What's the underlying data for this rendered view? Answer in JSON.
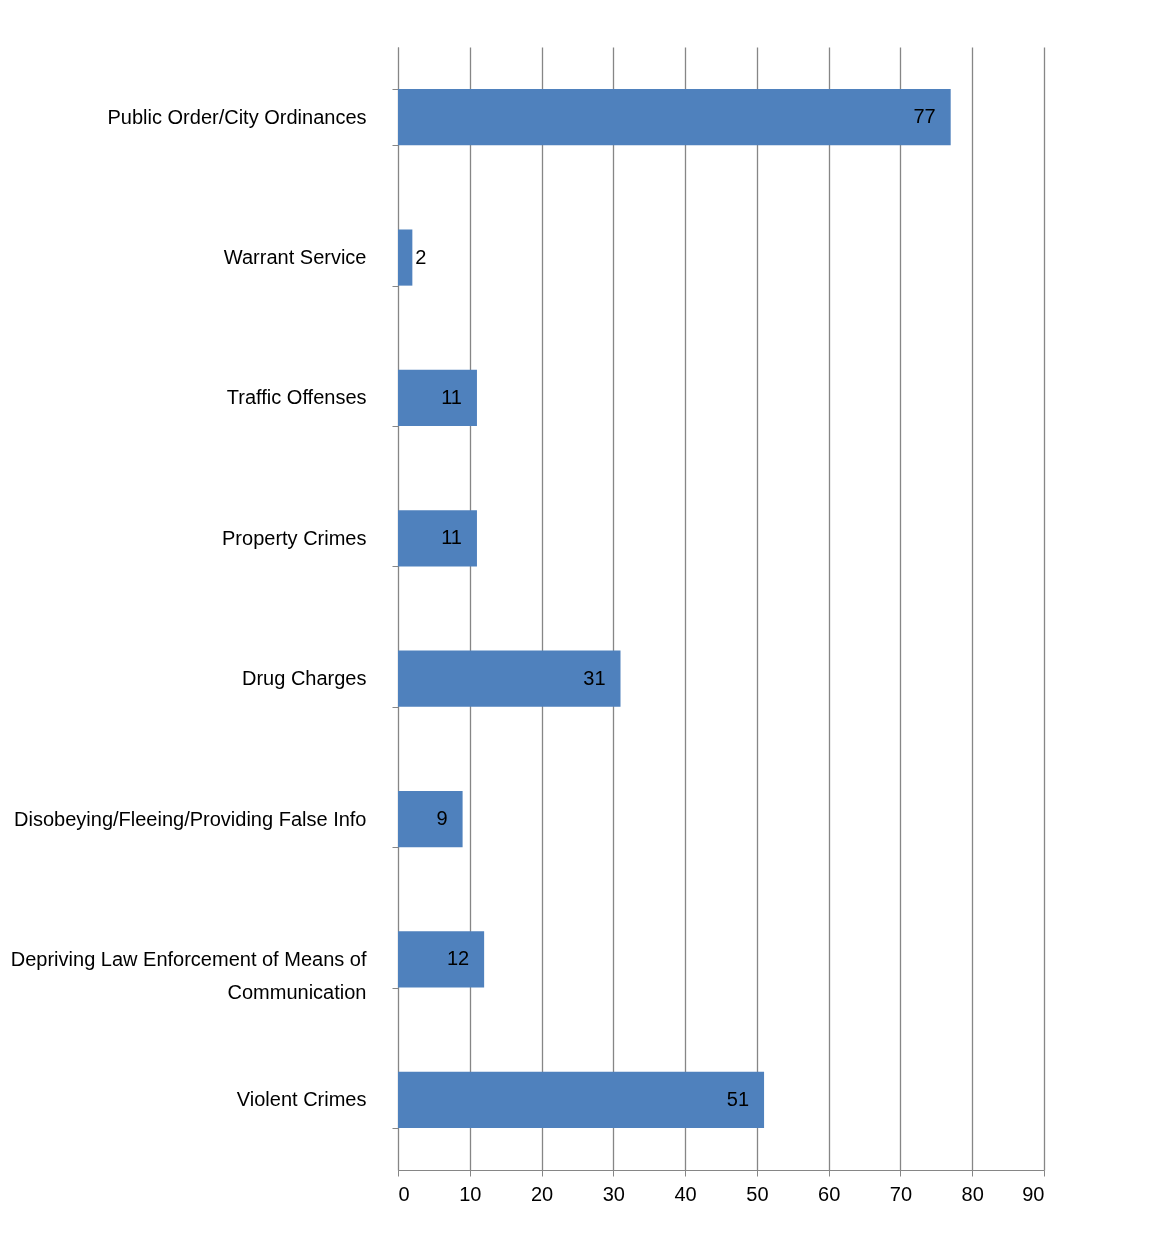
{
  "chart_data": {
    "type": "bar",
    "orientation": "horizontal",
    "categories": [
      "Public Order/City Ordinances",
      "Warrant Service",
      "Traffic Offenses",
      "Property Crimes",
      "Drug Charges",
      "Disobeying/Fleeing/Providing False Info",
      "Depriving Law Enforcement of Means of Communication",
      "Violent Crimes"
    ],
    "values": [
      77,
      2,
      11,
      11,
      31,
      9,
      12,
      51
    ],
    "color": "#4f81bd",
    "xlim": [
      0,
      90
    ],
    "xticks": [
      0,
      10,
      20,
      30,
      40,
      50,
      60,
      70,
      80,
      90
    ],
    "grid": "x",
    "data_labels": true
  }
}
